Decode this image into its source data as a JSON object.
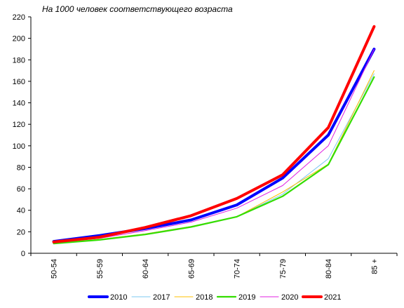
{
  "chart_data": {
    "type": "line",
    "title": "На 1000 человек соответствующего возраста",
    "categories": [
      "50-54",
      "55-59",
      "60-64",
      "65-69",
      "70-74",
      "75-79",
      "80-84",
      "85 +"
    ],
    "ylim": [
      0,
      220
    ],
    "yticks": [
      0,
      20,
      40,
      60,
      80,
      100,
      120,
      140,
      160,
      180,
      200,
      220
    ],
    "grid": false,
    "legend_position": "bottom",
    "series": [
      {
        "name": "2010",
        "color": "#0000ff",
        "width": "thick",
        "values": [
          11,
          16.5,
          23,
          31,
          45,
          70,
          110,
          190
        ]
      },
      {
        "name": "2017",
        "color": "#7ec8f0",
        "width": "thin",
        "values": [
          9.5,
          13,
          18,
          25,
          34,
          55,
          88,
          167
        ]
      },
      {
        "name": "2018",
        "color": "#ffc000",
        "width": "thin",
        "values": [
          9.5,
          13,
          18,
          25,
          34,
          57,
          83,
          170
        ]
      },
      {
        "name": "2019",
        "color": "#33dd00",
        "width": "medium",
        "values": [
          9,
          12.5,
          17.5,
          24.5,
          34,
          53,
          82.5,
          164
        ]
      },
      {
        "name": "2020",
        "color": "#e020e0",
        "width": "thin",
        "values": [
          10,
          14,
          21,
          29,
          42,
          63,
          100,
          190
        ]
      },
      {
        "name": "2021",
        "color": "#ff0000",
        "width": "thick",
        "values": [
          10.5,
          15,
          24,
          35,
          51,
          73,
          117,
          211
        ]
      }
    ]
  }
}
